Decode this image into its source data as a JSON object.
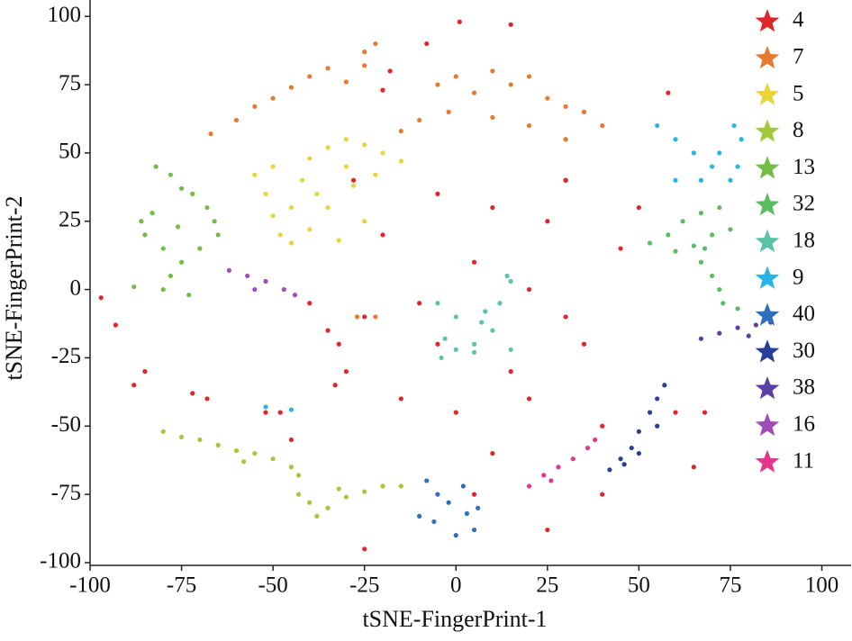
{
  "chart_data": {
    "type": "scatter",
    "x_label": "tSNE-FingerPrint-1",
    "y_label": "tSNE-FingerPrint-2",
    "xlim": [
      -100,
      108
    ],
    "ylim": [
      -101,
      106
    ],
    "xticks": [
      -100,
      -75,
      -50,
      -25,
      0,
      25,
      50,
      75,
      100
    ],
    "yticks": [
      -100,
      -75,
      -50,
      -25,
      0,
      25,
      50,
      75,
      100
    ],
    "legend": "upper right",
    "grid": false,
    "series": [
      {
        "name": "4",
        "color": "#e0262b",
        "x": [
          -5,
          10,
          -20,
          25,
          30,
          5,
          -10,
          15,
          20,
          35,
          40,
          0,
          -15,
          -25,
          10,
          30,
          45,
          -30,
          -35,
          -40,
          -52,
          -48,
          -45,
          -88,
          -85,
          -97,
          -93,
          -68,
          -72,
          1,
          -8,
          15,
          -18,
          -20,
          30,
          -5,
          20,
          40,
          25,
          60,
          65,
          68,
          58,
          -25,
          -32,
          -33,
          5,
          50,
          -28
        ],
        "y": [
          35,
          30,
          20,
          25,
          40,
          10,
          -5,
          -30,
          -40,
          -20,
          -50,
          -45,
          -40,
          -10,
          -60,
          -10,
          15,
          -30,
          -15,
          -5,
          -45,
          -45,
          -55,
          -35,
          -30,
          -3,
          -13,
          -40,
          -38,
          98,
          90,
          97,
          80,
          73,
          40,
          -20,
          0,
          -75,
          -88,
          -45,
          -65,
          -45,
          72,
          -95,
          -20,
          -35,
          -75,
          30,
          40
        ]
      },
      {
        "name": "7",
        "color": "#e8792f",
        "x": [
          -67,
          -60,
          -55,
          -50,
          -45,
          -40,
          -35,
          -30,
          -25,
          -22,
          -25,
          -15,
          -10,
          -5,
          0,
          5,
          10,
          15,
          20,
          25,
          30,
          35,
          40,
          10,
          20,
          30,
          -2,
          -27,
          -22
        ],
        "y": [
          57,
          62,
          67,
          70,
          74,
          78,
          81,
          76,
          87,
          90,
          82,
          58,
          62,
          75,
          78,
          72,
          80,
          75,
          78,
          70,
          67,
          65,
          60,
          63,
          60,
          55,
          65,
          -10,
          -10
        ]
      },
      {
        "name": "5",
        "color": "#ebd43a",
        "x": [
          -55,
          -52,
          -50,
          -48,
          -45,
          -42,
          -40,
          -35,
          -30,
          -25,
          -20,
          -15,
          -22,
          -28,
          -35,
          -40,
          -45,
          -32,
          -25,
          -50,
          -38,
          -30
        ],
        "y": [
          42,
          35,
          27,
          20,
          30,
          40,
          48,
          52,
          55,
          53,
          50,
          47,
          42,
          38,
          30,
          22,
          17,
          18,
          25,
          45,
          35,
          45
        ]
      },
      {
        "name": "8",
        "color": "#a2c93a",
        "x": [
          -80,
          -75,
          -70,
          -65,
          -60,
          -55,
          -50,
          -45,
          -43,
          -58,
          -43,
          -40,
          -35,
          -30,
          -25,
          -20,
          -15,
          -38,
          -32
        ],
        "y": [
          -52,
          -54,
          -55,
          -57,
          -59,
          -60,
          -62,
          -65,
          -68,
          -63,
          -75,
          -78,
          -80,
          -76,
          -74,
          -72,
          -72,
          -83,
          -73
        ]
      },
      {
        "name": "13",
        "color": "#72bd45",
        "x": [
          -82,
          -78,
          -75,
          -72,
          -68,
          -66,
          -65,
          -70,
          -75,
          -78,
          -85,
          -86,
          -83,
          -80,
          -88,
          -80,
          -73,
          -76
        ],
        "y": [
          45,
          42,
          37,
          35,
          30,
          25,
          20,
          15,
          10,
          5,
          20,
          25,
          28,
          15,
          1,
          0,
          -2,
          23
        ]
      },
      {
        "name": "32",
        "color": "#5bbd63",
        "x": [
          53,
          58,
          62,
          67,
          72,
          60,
          65,
          70,
          75,
          67,
          70,
          72,
          73,
          77,
          68
        ],
        "y": [
          17,
          20,
          25,
          28,
          30,
          14,
          16,
          20,
          22,
          10,
          5,
          0,
          -5,
          -7,
          15
        ]
      },
      {
        "name": "18",
        "color": "#5cc3a8",
        "x": [
          -5,
          0,
          -3,
          0,
          5,
          10,
          12,
          14,
          15,
          8,
          5,
          15,
          -4,
          7
        ],
        "y": [
          -5,
          -10,
          -18,
          -22,
          -20,
          -15,
          -5,
          5,
          3,
          -8,
          -23,
          -22,
          -25,
          -12
        ]
      },
      {
        "name": "9",
        "color": "#27b5e3",
        "x": [
          55,
          60,
          65,
          70,
          75,
          77,
          78,
          76,
          72,
          60,
          67,
          -52,
          -45
        ],
        "y": [
          60,
          55,
          50,
          45,
          40,
          45,
          55,
          60,
          50,
          40,
          40,
          -43,
          -44
        ]
      },
      {
        "name": "40",
        "color": "#2f6fc0",
        "x": [
          -8,
          -5,
          -2,
          3,
          5,
          0,
          -6,
          -10,
          2,
          6
        ],
        "y": [
          -70,
          -75,
          -78,
          -82,
          -88,
          -90,
          -85,
          -83,
          -72,
          -80
        ]
      },
      {
        "name": "30",
        "color": "#283f9a",
        "x": [
          42,
          45,
          48,
          50,
          53,
          55,
          57,
          55,
          50,
          46
        ],
        "y": [
          -66,
          -62,
          -58,
          -52,
          -45,
          -40,
          -35,
          -50,
          -60,
          -64
        ]
      },
      {
        "name": "38",
        "color": "#5b3fa5",
        "x": [
          67,
          72,
          77,
          82,
          86,
          80
        ],
        "y": [
          -18,
          -16,
          -14,
          -13,
          -12,
          -17
        ]
      },
      {
        "name": "16",
        "color": "#a04db8",
        "x": [
          -62,
          -57,
          -52,
          -47,
          -44,
          -55
        ],
        "y": [
          7,
          5,
          3,
          0,
          -2,
          0
        ]
      },
      {
        "name": "11",
        "color": "#e6358c",
        "x": [
          20,
          24,
          28,
          32,
          36,
          38,
          26
        ],
        "y": [
          -72,
          -68,
          -65,
          -62,
          -58,
          -55,
          -70
        ]
      }
    ]
  }
}
